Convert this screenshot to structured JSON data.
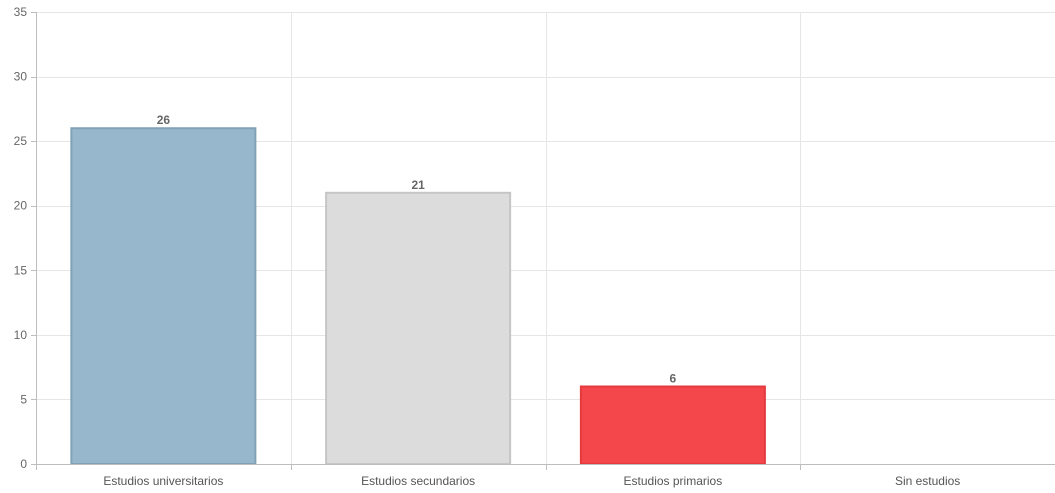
{
  "chart_data": {
    "type": "bar",
    "categories": [
      "Estudios universitarios",
      "Estudios secundarios",
      "Estudios primarios",
      "Sin estudios"
    ],
    "values": [
      26,
      21,
      6,
      0
    ],
    "data_labels": [
      "26",
      "21",
      "6",
      ""
    ],
    "bar_colors": [
      "#97b8cc",
      "#dcdcdc",
      "#f4474b",
      "#cccccc"
    ],
    "bar_border_colors": [
      "#7fa2b7",
      "#c5c5c5",
      "#e43a3e",
      "#b5b5b5"
    ],
    "ylim": [
      0,
      35
    ],
    "yticks": [
      0,
      5,
      10,
      15,
      20,
      25,
      30,
      35
    ],
    "grid": true,
    "title": "",
    "xlabel": "",
    "ylabel": "",
    "legend": "none"
  }
}
